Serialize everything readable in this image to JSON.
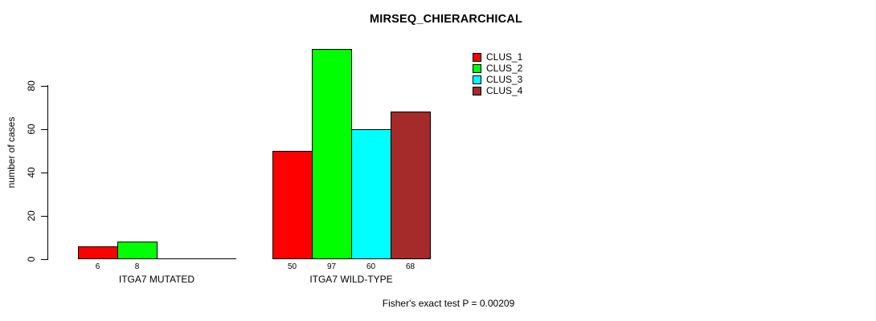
{
  "chart_data": {
    "type": "bar",
    "title": "MIRSEQ_CHIERARCHICAL",
    "ylabel": "number of cases",
    "xlabel": "",
    "ylim": [
      0,
      80
    ],
    "yticks": [
      0,
      20,
      40,
      60,
      80
    ],
    "grid": false,
    "legend_position": "top-right",
    "categories": [
      "ITGA7 MUTATED",
      "ITGA7 WILD-TYPE"
    ],
    "series": [
      {
        "name": "CLUS_1",
        "color": "#ff0000",
        "values": [
          6,
          50
        ]
      },
      {
        "name": "CLUS_2",
        "color": "#00ff00",
        "values": [
          8,
          97
        ]
      },
      {
        "name": "CLUS_3",
        "color": "#00ffff",
        "values": [
          0,
          60
        ]
      },
      {
        "name": "CLUS_4",
        "color": "#a52a2a",
        "values": [
          0,
          68
        ]
      }
    ],
    "bar_value_labels": [
      [
        "6",
        "8",
        "",
        ""
      ],
      [
        "50",
        "97",
        "60",
        "68"
      ]
    ],
    "annotation": "Fisher's exact test P = 0.00209"
  }
}
